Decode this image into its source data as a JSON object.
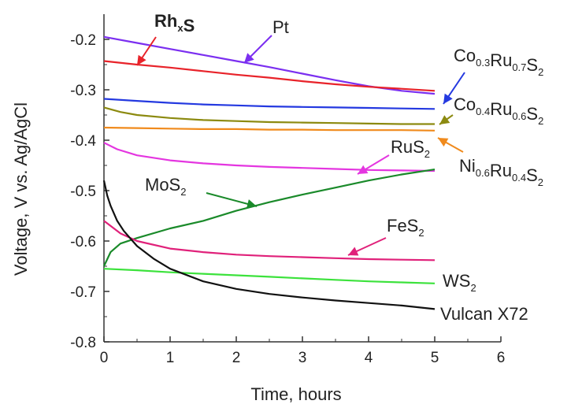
{
  "chart_data": {
    "type": "line",
    "title": "",
    "xlabel": "Time, hours",
    "ylabel": "Voltage, V vs. Ag/AgCl",
    "xlim": [
      0,
      6
    ],
    "ylim": [
      -0.8,
      -0.15
    ],
    "xticks": [
      "0",
      "1",
      "2",
      "3",
      "4",
      "5",
      "6"
    ],
    "yticks": [
      "-0.2",
      "-0.3",
      "-0.4",
      "-0.5",
      "-0.6",
      "-0.7",
      "-0.8"
    ],
    "grid": false,
    "legend": "inline labels with arrows",
    "series": [
      {
        "name": "Pt",
        "label": "Pt",
        "color": "#7b2ff0",
        "x": [
          0,
          0.5,
          1,
          1.5,
          2,
          2.5,
          3,
          3.5,
          4,
          4.5,
          5
        ],
        "y": [
          -0.195,
          -0.207,
          -0.219,
          -0.231,
          -0.243,
          -0.255,
          -0.268,
          -0.281,
          -0.293,
          -0.302,
          -0.308
        ]
      },
      {
        "name": "RhxS",
        "label": "RhxS",
        "color": "#e8232a",
        "x": [
          0,
          0.5,
          1,
          1.5,
          2,
          2.5,
          3,
          3.5,
          4,
          4.5,
          5
        ],
        "y": [
          -0.243,
          -0.25,
          -0.256,
          -0.263,
          -0.27,
          -0.276,
          -0.283,
          -0.289,
          -0.294,
          -0.298,
          -0.302
        ]
      },
      {
        "name": "Co0.3Ru0.7S2",
        "label": "Co0.3Ru0.7S2",
        "color": "#2439e0",
        "x": [
          0,
          0.5,
          1,
          1.5,
          2,
          2.5,
          3,
          3.5,
          4,
          4.5,
          5
        ],
        "y": [
          -0.318,
          -0.322,
          -0.326,
          -0.329,
          -0.331,
          -0.333,
          -0.334,
          -0.335,
          -0.336,
          -0.337,
          -0.338
        ]
      },
      {
        "name": "Co0.4Ru0.6S2",
        "label": "Co0.4Ru0.6S2",
        "color": "#8c8a10",
        "x": [
          0,
          0.25,
          0.5,
          1,
          1.5,
          2,
          2.5,
          3,
          3.5,
          4,
          4.5,
          5
        ],
        "y": [
          -0.335,
          -0.344,
          -0.35,
          -0.356,
          -0.36,
          -0.362,
          -0.364,
          -0.365,
          -0.366,
          -0.367,
          -0.368,
          -0.368
        ]
      },
      {
        "name": "Ni0.6Ru0.4S2",
        "label": "Ni0.6Ru0.4S2",
        "color": "#f08a1c",
        "x": [
          0,
          0.5,
          1,
          1.5,
          2,
          2.5,
          3,
          3.5,
          4,
          4.5,
          5
        ],
        "y": [
          -0.375,
          -0.376,
          -0.377,
          -0.378,
          -0.378,
          -0.379,
          -0.379,
          -0.38,
          -0.38,
          -0.38,
          -0.381
        ]
      },
      {
        "name": "RuS2",
        "label": "RuS2",
        "color": "#e436e0",
        "x": [
          0,
          0.2,
          0.5,
          1,
          1.5,
          2,
          2.5,
          3,
          3.5,
          4,
          4.5,
          5
        ],
        "y": [
          -0.405,
          -0.418,
          -0.43,
          -0.44,
          -0.446,
          -0.45,
          -0.453,
          -0.455,
          -0.457,
          -0.459,
          -0.46,
          -0.461
        ]
      },
      {
        "name": "MoS2",
        "label": "MoS2",
        "color": "#1a8a2a",
        "x": [
          0,
          0.1,
          0.25,
          0.5,
          1,
          1.5,
          2,
          2.5,
          3,
          3.5,
          4,
          4.5,
          5
        ],
        "y": [
          -0.65,
          -0.622,
          -0.605,
          -0.594,
          -0.575,
          -0.56,
          -0.54,
          -0.523,
          -0.508,
          -0.494,
          -0.48,
          -0.468,
          -0.458
        ]
      },
      {
        "name": "FeS2",
        "label": "FeS2",
        "color": "#e0217a",
        "x": [
          0,
          0.25,
          0.5,
          1,
          1.5,
          2,
          2.5,
          3,
          3.5,
          4,
          4.5,
          5
        ],
        "y": [
          -0.56,
          -0.585,
          -0.6,
          -0.615,
          -0.622,
          -0.627,
          -0.63,
          -0.632,
          -0.634,
          -0.636,
          -0.637,
          -0.638
        ]
      },
      {
        "name": "WS2",
        "label": "WS2",
        "color": "#3ce23c",
        "x": [
          0,
          0.5,
          1,
          1.5,
          2,
          2.5,
          3,
          3.5,
          4,
          4.5,
          5
        ],
        "y": [
          -0.655,
          -0.658,
          -0.662,
          -0.665,
          -0.668,
          -0.671,
          -0.674,
          -0.677,
          -0.68,
          -0.682,
          -0.684
        ]
      },
      {
        "name": "Vulcan X72",
        "label": "Vulcan X72",
        "color": "#111111",
        "x": [
          0,
          0.05,
          0.1,
          0.2,
          0.3,
          0.5,
          0.75,
          1,
          1.5,
          2,
          2.5,
          3,
          3.5,
          4,
          4.5,
          5
        ],
        "y": [
          -0.48,
          -0.51,
          -0.53,
          -0.56,
          -0.58,
          -0.61,
          -0.635,
          -0.655,
          -0.68,
          -0.695,
          -0.705,
          -0.712,
          -0.718,
          -0.723,
          -0.728,
          -0.735
        ]
      }
    ]
  }
}
